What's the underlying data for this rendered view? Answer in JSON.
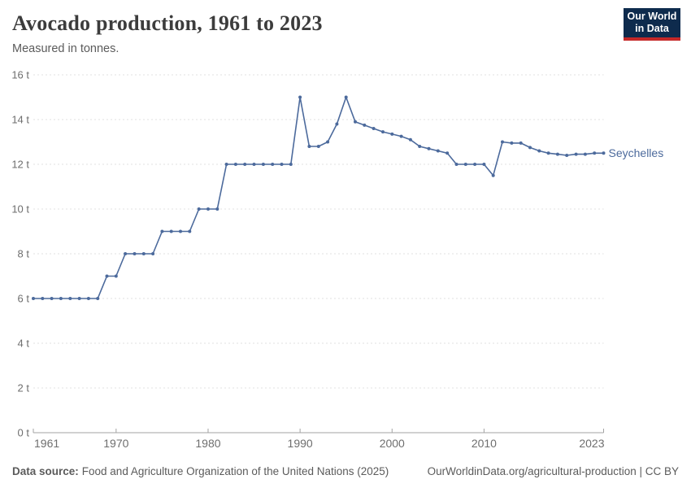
{
  "header": {
    "title": "Avocado production, 1961 to 2023",
    "subtitle": "Measured in tonnes.",
    "logo": {
      "line1": "Our World",
      "line2": "in Data",
      "bg_color": "#0E2B4D",
      "accent_color": "#C52828",
      "text_color": "#FFFFFF"
    }
  },
  "chart_data": {
    "type": "line",
    "title": "Avocado production, 1961 to 2023",
    "subtitle": "Measured in tonnes.",
    "unit": "tonnes",
    "grid": true,
    "legend_position": "end-of-line-label",
    "xlim": [
      1961,
      2023
    ],
    "ylim": [
      0,
      16
    ],
    "x_ticks": [
      1961,
      1970,
      1980,
      1990,
      2000,
      2010,
      2023
    ],
    "y_ticks": [
      0,
      2,
      4,
      6,
      8,
      10,
      12,
      14,
      16
    ],
    "y_tick_suffix": " t",
    "colors": {
      "line": "#4C6A9C",
      "grid": "#E0E0E0",
      "axis": "#A3A3A3",
      "tick_label": "#6E6E6E"
    },
    "series": [
      {
        "name": "Seychelles",
        "color": "#4C6A9C",
        "x": [
          1961,
          1962,
          1963,
          1964,
          1965,
          1966,
          1967,
          1968,
          1969,
          1970,
          1971,
          1972,
          1973,
          1974,
          1975,
          1976,
          1977,
          1978,
          1979,
          1980,
          1981,
          1982,
          1983,
          1984,
          1985,
          1986,
          1987,
          1988,
          1989,
          1990,
          1991,
          1992,
          1993,
          1994,
          1995,
          1996,
          1997,
          1998,
          1999,
          2000,
          2001,
          2002,
          2003,
          2004,
          2005,
          2006,
          2007,
          2008,
          2009,
          2010,
          2011,
          2012,
          2013,
          2014,
          2015,
          2016,
          2017,
          2018,
          2019,
          2020,
          2021,
          2022,
          2023
        ],
        "values": [
          6,
          6,
          6,
          6,
          6,
          6,
          6,
          6,
          7,
          7,
          8,
          8,
          8,
          8,
          9,
          9,
          9,
          9,
          10,
          10,
          10,
          12,
          12,
          12,
          12,
          12,
          12,
          12,
          12,
          15,
          12.8,
          12.8,
          13,
          13.8,
          15,
          13.9,
          13.75,
          13.6,
          13.45,
          13.35,
          13.25,
          13.1,
          12.8,
          12.7,
          12.6,
          12.5,
          12,
          12,
          12,
          12,
          11.5,
          13,
          12.95,
          12.95,
          12.75,
          12.6,
          12.5,
          12.45,
          12.4,
          12.45,
          12.45,
          12.5,
          12.5
        ]
      }
    ]
  },
  "footer": {
    "source_label": "Data source:",
    "source_text": "Food and Agriculture Organization of the United Nations (2025)",
    "credit_text": "OurWorldinData.org/agricultural-production | CC BY"
  }
}
